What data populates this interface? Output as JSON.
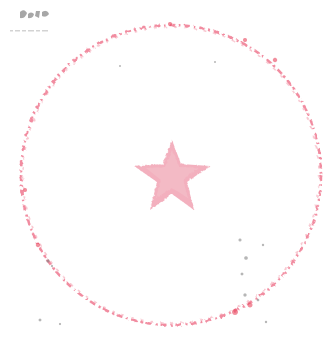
{
  "image": {
    "description_type": "faded red circular seal with a central star on white paper",
    "colors": {
      "background": "#ffffff",
      "seal_red": "#e8455d",
      "seal_light": "#f3a0b0",
      "speckle_gray": "#7b7b7b"
    },
    "icons": {
      "seal": "circular-seal-icon",
      "star": "star-icon",
      "corner_mark": "smudge-mark-icon"
    }
  }
}
